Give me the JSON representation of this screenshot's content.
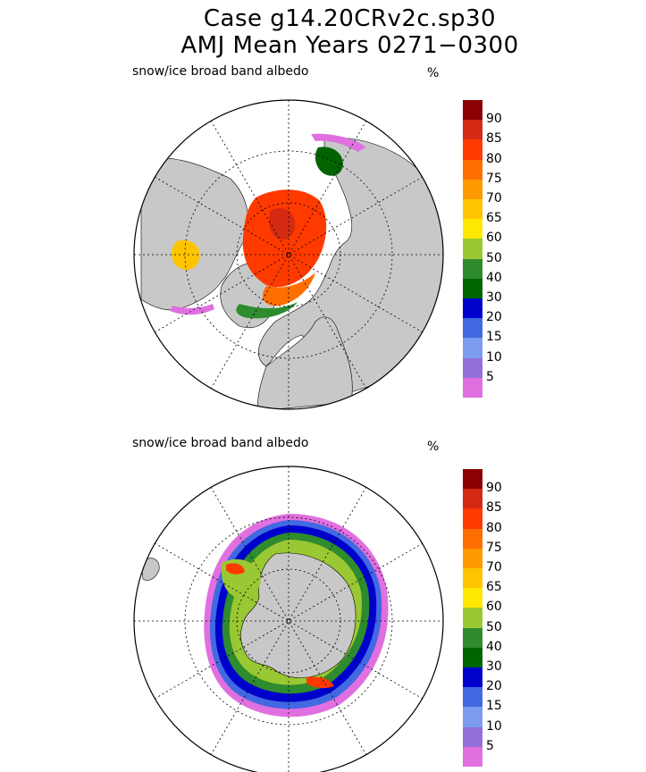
{
  "title_line1": "Case g14.20CRv2c.sp30",
  "title_line2": "AMJ Mean    Years 0271−0300",
  "colors": {
    "land": "#c8c8c8",
    "ocean": "#ffffff"
  },
  "colorbar": {
    "levels": [
      {
        "label": "90",
        "color": "#8b0000"
      },
      {
        "label": "85",
        "color": "#d42a14"
      },
      {
        "label": "80",
        "color": "#ff3a00"
      },
      {
        "label": "75",
        "color": "#ff6e00"
      },
      {
        "label": "70",
        "color": "#ff9a00"
      },
      {
        "label": "65",
        "color": "#ffc400"
      },
      {
        "label": "60",
        "color": "#ffe800"
      },
      {
        "label": "50",
        "color": "#9ac832"
      },
      {
        "label": "40",
        "color": "#2e8b2e"
      },
      {
        "label": "30",
        "color": "#006400"
      },
      {
        "label": "20",
        "color": "#0000cd"
      },
      {
        "label": "15",
        "color": "#4169e1"
      },
      {
        "label": "10",
        "color": "#7b9cf0"
      },
      {
        "label": "5",
        "color": "#9370db"
      },
      {
        "label": "",
        "color": "#e070e0"
      }
    ]
  },
  "panels": [
    {
      "id": "north",
      "label": "snow/ice broad band albedo",
      "unit": "%"
    },
    {
      "id": "south",
      "label": "snow/ice broad band albedo",
      "unit": "%"
    }
  ]
}
